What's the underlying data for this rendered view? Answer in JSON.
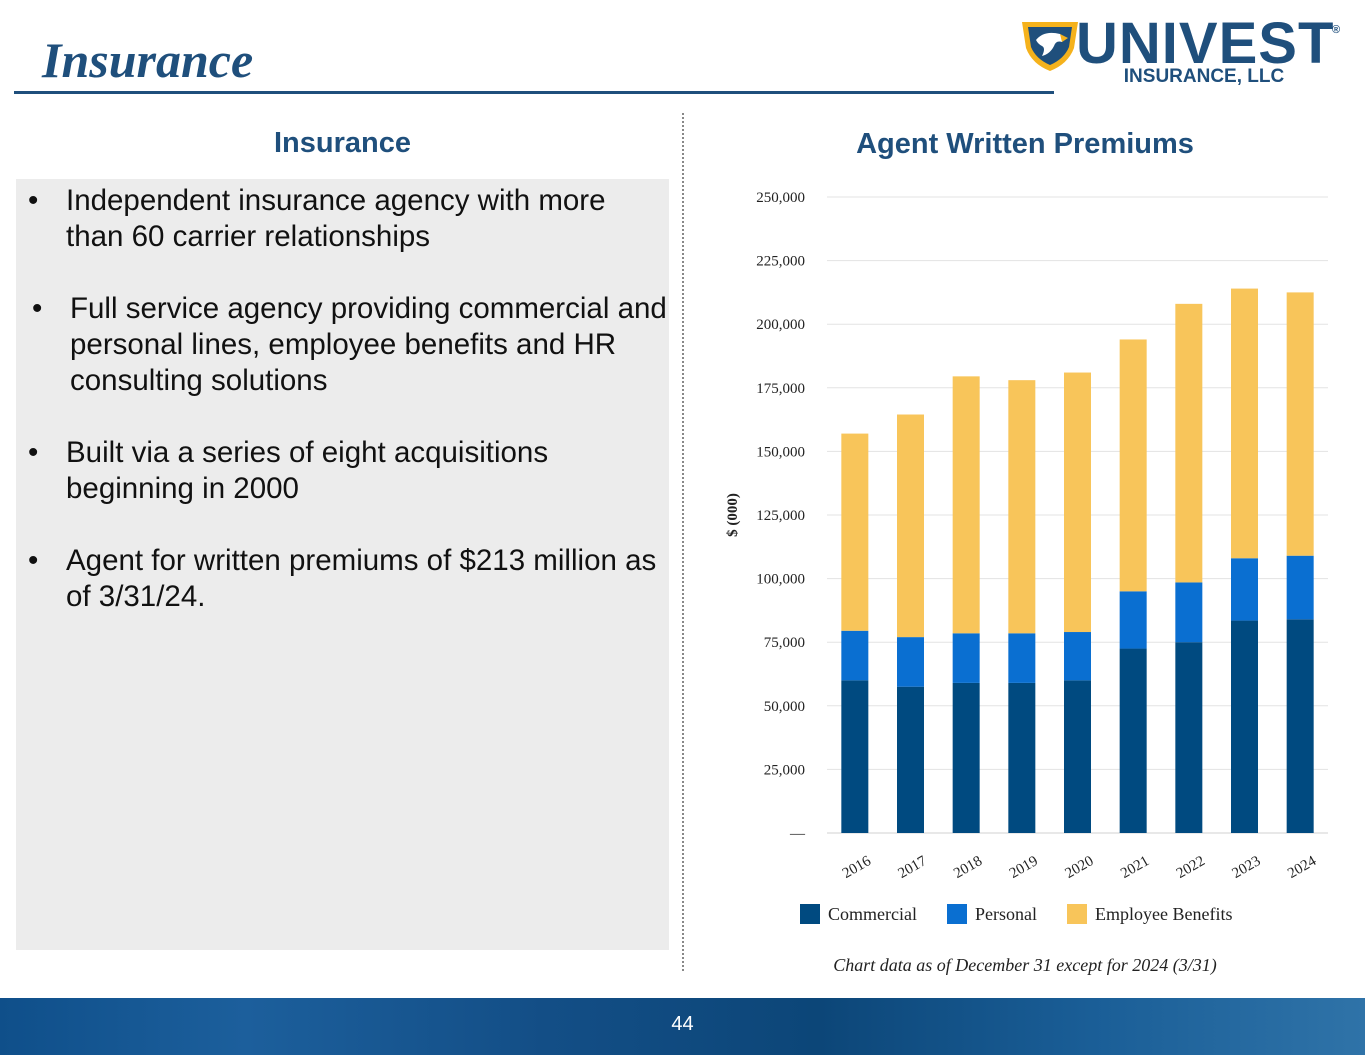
{
  "header": {
    "title": "Insurance"
  },
  "logo": {
    "brand": "UNIVEST",
    "registered": "®",
    "subtitle": "INSURANCE, LLC"
  },
  "left": {
    "heading": "Insurance",
    "bullets": [
      "Independent insurance agency with more than 60 carrier relationships",
      "Full service agency providing commercial and personal lines, employee benefits and HR consulting solutions",
      "Built via a series of eight acquisitions beginning in 2000",
      "Agent for written premiums of $213 million as of 3/31/24."
    ]
  },
  "chart_title": "Agent Written Premiums",
  "chart_data": {
    "type": "bar",
    "stacked": true,
    "categories": [
      "2016",
      "2017",
      "2018",
      "2019",
      "2020",
      "2021",
      "2022",
      "2023",
      "2024"
    ],
    "series": [
      {
        "name": "Commercial",
        "color": "#004a80",
        "values": [
          60000,
          57500,
          59000,
          59000,
          60000,
          72500,
          75000,
          83500,
          84000
        ]
      },
      {
        "name": "Personal",
        "color": "#0a6fd1",
        "values": [
          19500,
          19500,
          19500,
          19500,
          19000,
          22500,
          23500,
          24500,
          25000
        ]
      },
      {
        "name": "Employee Benefits",
        "color": "#f8c55a",
        "values": [
          77500,
          87500,
          101000,
          99500,
          102000,
          99000,
          109500,
          106000,
          103500
        ]
      }
    ],
    "ylabel": "$ (000)",
    "ylim": [
      0,
      250000
    ],
    "yticks": [
      "—",
      "25,000",
      "50,000",
      "75,000",
      "100,000",
      "125,000",
      "150,000",
      "175,000",
      "200,000",
      "225,000",
      "250,000"
    ],
    "grid": true,
    "legend": "bottom"
  },
  "footnote": "Chart data as of December 31 except for 2024 (3/31)",
  "page_number": "44"
}
